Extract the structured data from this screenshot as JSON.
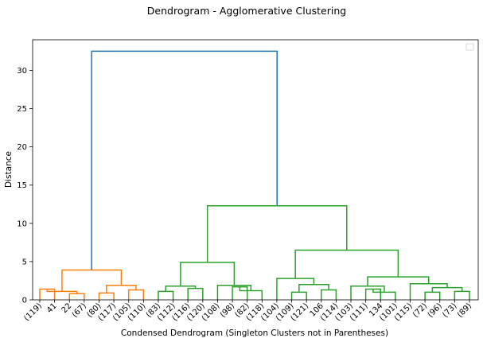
{
  "chart_data": {
    "type": "dendrogram",
    "title": "Dendrogram - Agglomerative Clustering",
    "xlabel": "Condensed Dendrogram (Singleton Clusters not in Parentheses)",
    "ylabel": "Distance",
    "ylim": [
      0,
      34
    ],
    "yticks": [
      0,
      5,
      10,
      15,
      20,
      25,
      30
    ],
    "grid": false,
    "legend": {
      "placement": "top-right",
      "entries": []
    },
    "colors": {
      "cluster1": "#ff7f0e",
      "cluster2": "#2ca02c",
      "root": "#1f77b4"
    },
    "leaves": [
      "(119)",
      "41",
      "22",
      "(67)",
      "(80)",
      "(117)",
      "(105)",
      "(110)",
      "(83)",
      "(112)",
      "(116)",
      "(120)",
      "(108)",
      "(98)",
      "(82)",
      "(118)",
      "(104)",
      "(109)",
      "(121)",
      "106",
      "(114)",
      "(103)",
      "(111)",
      "134",
      "(101)",
      "(115)",
      "(72)",
      "(96)",
      "(73)",
      "(89)"
    ],
    "links": [
      {
        "left": 0,
        "right": 1,
        "height": 1.4,
        "color": "cluster1"
      },
      {
        "left": 2,
        "right": 3,
        "height": 0.8,
        "color": "cluster1"
      },
      {
        "left": 30,
        "right": 31,
        "height": 1.1,
        "color": "cluster1"
      },
      {
        "left": 4,
        "right": 5,
        "height": 0.9,
        "color": "cluster1"
      },
      {
        "left": 6,
        "right": 7,
        "height": 1.3,
        "color": "cluster1"
      },
      {
        "left": 33,
        "right": 34,
        "height": 1.9,
        "color": "cluster1"
      },
      {
        "left": 32,
        "right": 35,
        "height": 3.9,
        "color": "cluster1"
      },
      {
        "left": 8,
        "right": 9,
        "height": 1.1,
        "color": "cluster2"
      },
      {
        "left": 10,
        "right": 11,
        "height": 1.5,
        "color": "cluster2"
      },
      {
        "left": 37,
        "right": 38,
        "height": 1.8,
        "color": "cluster2"
      },
      {
        "left": 13,
        "right": 14,
        "height": 1.7,
        "color": "cluster2"
      },
      {
        "left": 40,
        "right": 15,
        "height": 1.2,
        "color": "cluster2"
      },
      {
        "left": 12,
        "right": 41,
        "height": 1.9,
        "color": "cluster2"
      },
      {
        "left": 39,
        "right": 42,
        "height": 4.9,
        "color": "cluster2"
      },
      {
        "left": 17,
        "right": 18,
        "height": 1.0,
        "color": "cluster2"
      },
      {
        "left": 19,
        "right": 20,
        "height": 1.3,
        "color": "cluster2"
      },
      {
        "left": 44,
        "right": 45,
        "height": 2.0,
        "color": "cluster2"
      },
      {
        "left": 16,
        "right": 46,
        "height": 2.8,
        "color": "cluster2"
      },
      {
        "left": 22,
        "right": 23,
        "height": 1.4,
        "color": "cluster2"
      },
      {
        "left": 48,
        "right": 24,
        "height": 1.0,
        "color": "cluster2"
      },
      {
        "left": 21,
        "right": 49,
        "height": 1.8,
        "color": "cluster2"
      },
      {
        "left": 26,
        "right": 27,
        "height": 1.0,
        "color": "cluster2"
      },
      {
        "left": 28,
        "right": 29,
        "height": 1.1,
        "color": "cluster2"
      },
      {
        "left": 51,
        "right": 52,
        "height": 1.6,
        "color": "cluster2"
      },
      {
        "left": 25,
        "right": 53,
        "height": 2.1,
        "color": "cluster2"
      },
      {
        "left": 50,
        "right": 54,
        "height": 3.0,
        "color": "cluster2"
      },
      {
        "left": 47,
        "right": 55,
        "height": 6.5,
        "color": "cluster2"
      },
      {
        "left": 43,
        "right": 56,
        "height": 12.3,
        "color": "cluster2"
      },
      {
        "left": 36,
        "right": 57,
        "height": 32.5,
        "color": "root"
      }
    ]
  }
}
